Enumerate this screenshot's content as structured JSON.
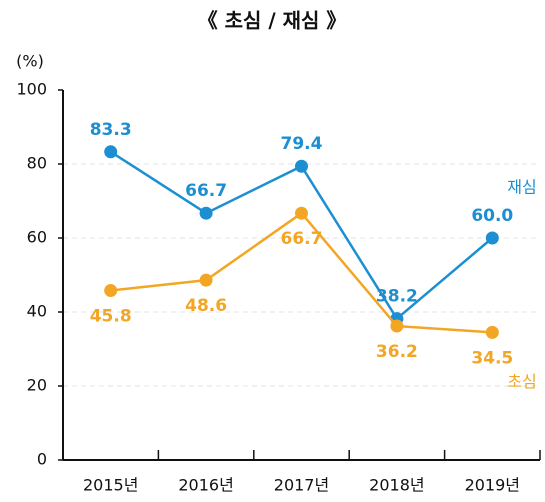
{
  "chart_data": {
    "type": "line",
    "title": "《 초심 / 재심 》",
    "y_label": "(%)",
    "categories": [
      "2015년",
      "2016년",
      "2017년",
      "2018년",
      "2019년"
    ],
    "series": [
      {
        "name": "재심",
        "color": "#1b8fd2",
        "values": [
          83.3,
          66.7,
          79.4,
          38.2,
          60
        ],
        "value_labels": [
          "83.3",
          "66.7",
          "79.4",
          "38.2",
          "60.0"
        ]
      },
      {
        "name": "초심",
        "color": "#f2a623",
        "values": [
          45.8,
          48.6,
          66.7,
          36.2,
          34.5
        ],
        "value_labels": [
          "45.8",
          "48.6",
          "66.7",
          "36.2",
          "34.5"
        ]
      }
    ],
    "ylim": [
      0,
      100
    ],
    "yticks": [
      0,
      20,
      40,
      60,
      80,
      100
    ],
    "grid": true
  }
}
